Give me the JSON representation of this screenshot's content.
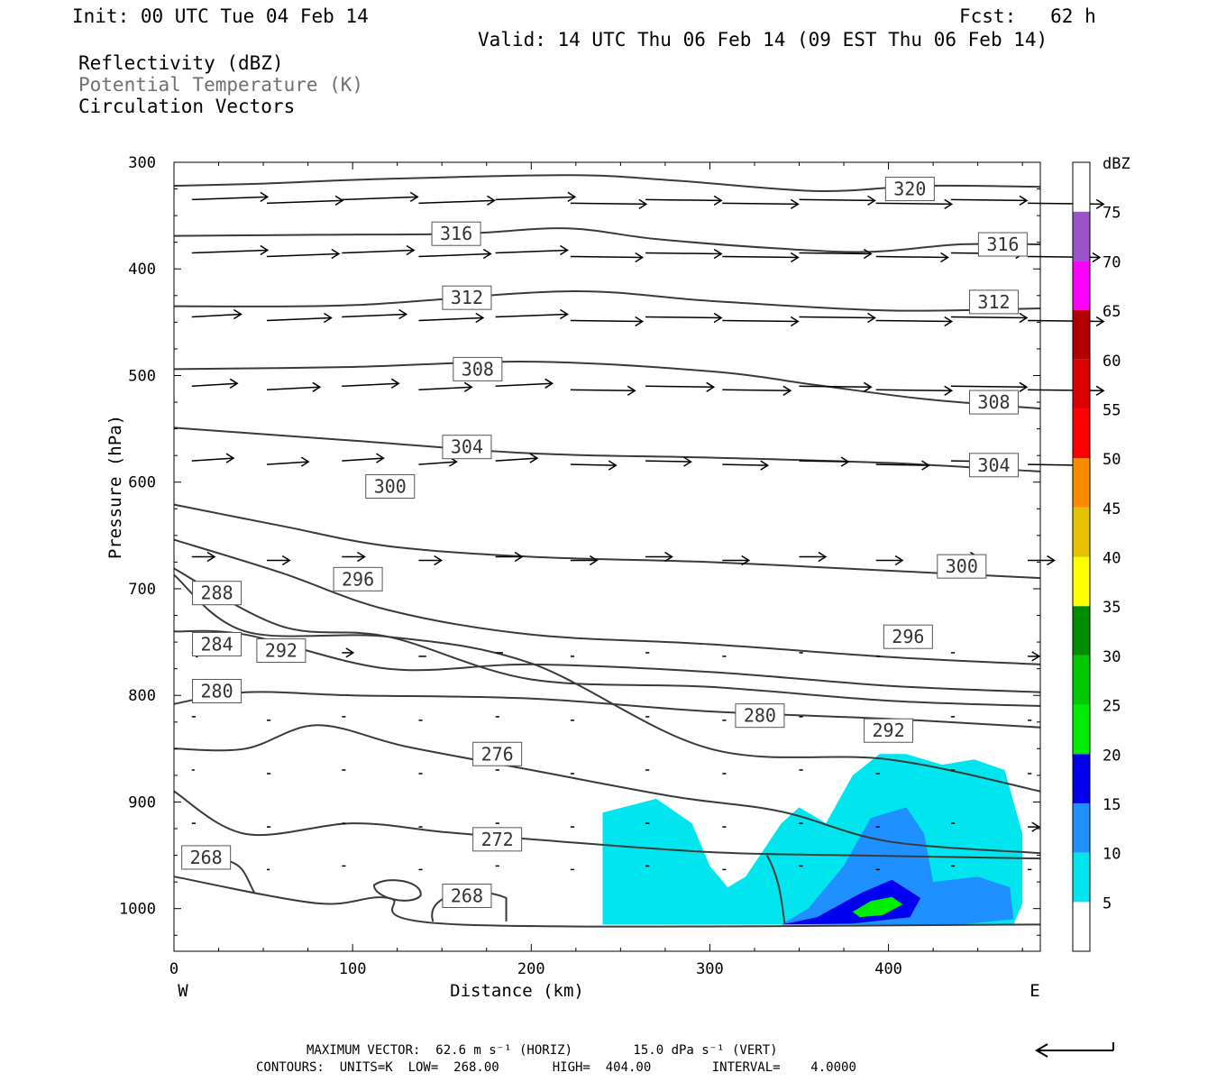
{
  "header": {
    "init": "Init: 00 UTC Tue 04 Feb 14",
    "fcst": "Fcst:   62 h",
    "valid": "Valid: 14 UTC Thu 06 Feb 14 (09 EST Thu 06 Feb 14)",
    "fields": [
      "Reflectivity (dBZ)",
      "Potential Temperature (K)",
      "Circulation Vectors"
    ]
  },
  "footer": {
    "max_vector": "MAXIMUM VECTOR:  62.6 m s⁻¹ (HORIZ)        15.0 dPa s⁻¹ (VERT)",
    "contours": "CONTOURS:  UNITS=K  LOW=  268.00       HIGH=  404.00        INTERVAL=    4.0000"
  },
  "colors": {
    "contour": "#3a3a3a",
    "refl_5": "#00e5ee",
    "refl_10": "#1e90ff",
    "refl_15": "#0000ee",
    "refl_20": "#00ee00"
  },
  "chart_data": {
    "type": "cross-section (filled contour + line contour + vectors)",
    "xlabel": "Distance (km)",
    "ylabel": "Pressure (hPa)",
    "xlim": [
      0,
      485
    ],
    "ylim": [
      1040,
      300
    ],
    "x_ticks": [
      "0",
      "100",
      "200",
      "300",
      "400"
    ],
    "y_ticks": [
      "300",
      "400",
      "500",
      "600",
      "700",
      "800",
      "900",
      "1000"
    ],
    "side_labels": {
      "left": "W",
      "right": "E"
    },
    "colorbar": {
      "unit": "dBZ",
      "levels": [
        "5",
        "10",
        "15",
        "20",
        "25",
        "30",
        "35",
        "40",
        "45",
        "50",
        "55",
        "60",
        "65",
        "70",
        "75"
      ],
      "colors": [
        "#ffffff",
        "#00e5ee",
        "#1e90ff",
        "#0000ee",
        "#00ee00",
        "#00c800",
        "#008c00",
        "#ffff00",
        "#e6c300",
        "#ff8c00",
        "#ff0000",
        "#dc0000",
        "#b40000",
        "#ff00ff",
        "#9955cc",
        "#ffffff"
      ]
    },
    "theta_contours": [
      {
        "label": "320",
        "points": [
          [
            0,
            322
          ],
          [
            50,
            320
          ],
          [
            110,
            316
          ],
          [
            220,
            312
          ],
          [
            280,
            317
          ],
          [
            360,
            327
          ],
          [
            420,
            322
          ],
          [
            485,
            323
          ]
        ],
        "labels_at": [
          [
            412,
            325
          ]
        ]
      },
      {
        "label": "316",
        "points": [
          [
            0,
            369
          ],
          [
            80,
            368
          ],
          [
            160,
            367
          ],
          [
            220,
            362
          ],
          [
            270,
            372
          ],
          [
            340,
            381
          ],
          [
            390,
            384
          ],
          [
            440,
            377
          ],
          [
            485,
            377
          ]
        ],
        "labels_at": [
          [
            158,
            367
          ],
          [
            464,
            377
          ]
        ]
      },
      {
        "label": "312",
        "points": [
          [
            0,
            435
          ],
          [
            100,
            434
          ],
          [
            220,
            421
          ],
          [
            300,
            430
          ],
          [
            400,
            439
          ],
          [
            485,
            437
          ]
        ],
        "labels_at": [
          [
            164,
            427
          ],
          [
            459,
            431
          ]
        ]
      },
      {
        "label": "308",
        "points": [
          [
            0,
            494
          ],
          [
            100,
            492
          ],
          [
            200,
            487
          ],
          [
            300,
            496
          ],
          [
            360,
            509
          ],
          [
            420,
            522
          ],
          [
            485,
            531
          ]
        ],
        "labels_at": [
          [
            170,
            494
          ],
          [
            459,
            525
          ]
        ]
      },
      {
        "label": "304",
        "points": [
          [
            0,
            549
          ],
          [
            100,
            561
          ],
          [
            200,
            573
          ],
          [
            300,
            577
          ],
          [
            400,
            582
          ],
          [
            485,
            590
          ]
        ],
        "labels_at": [
          [
            164,
            567
          ],
          [
            459,
            584
          ]
        ]
      },
      {
        "label": "300",
        "points": [
          [
            0,
            621
          ],
          [
            60,
            641
          ],
          [
            120,
            660
          ],
          [
            200,
            670
          ],
          [
            300,
            675
          ],
          [
            400,
            683
          ],
          [
            485,
            690
          ]
        ],
        "labels_at": [
          [
            121,
            604
          ],
          [
            441,
            679
          ]
        ]
      },
      {
        "label": "296",
        "points": [
          [
            0,
            654
          ],
          [
            60,
            685
          ],
          [
            120,
            720
          ],
          [
            200,
            743
          ],
          [
            300,
            752
          ],
          [
            400,
            764
          ],
          [
            485,
            771
          ]
        ],
        "labels_at": [
          [
            103,
            691
          ],
          [
            411,
            745
          ]
        ]
      },
      {
        "label": "292",
        "points": [
          [
            0,
            681
          ],
          [
            60,
            735
          ],
          [
            120,
            745
          ],
          [
            200,
            785
          ],
          [
            300,
            792
          ],
          [
            400,
            805
          ],
          [
            485,
            810
          ]
        ],
        "labels_at": [
          [
            60,
            758
          ],
          [
            400,
            833
          ]
        ]
      },
      {
        "label": "288",
        "points": [
          [
            0,
            687
          ],
          [
            40,
            740
          ],
          [
            120,
            745
          ],
          [
            200,
            770
          ],
          [
            300,
            850
          ],
          [
            400,
            860
          ],
          [
            485,
            890
          ]
        ],
        "labels_at": [
          [
            24,
            704
          ]
        ]
      },
      {
        "label": "284",
        "points": [
          [
            0,
            740
          ],
          [
            40,
            743
          ],
          [
            120,
            775
          ],
          [
            200,
            771
          ],
          [
            300,
            778
          ],
          [
            400,
            791
          ],
          [
            485,
            797
          ]
        ],
        "labels_at": [
          [
            24,
            752
          ]
        ]
      },
      {
        "label": "280",
        "points": [
          [
            0,
            808
          ],
          [
            40,
            797
          ],
          [
            100,
            800
          ],
          [
            200,
            803
          ],
          [
            300,
            815
          ],
          [
            400,
            822
          ],
          [
            485,
            830
          ]
        ],
        "labels_at": [
          [
            24,
            796
          ],
          [
            328,
            819
          ]
        ]
      },
      {
        "label": "276",
        "points": [
          [
            0,
            850
          ],
          [
            40,
            850
          ],
          [
            80,
            828
          ],
          [
            130,
            848
          ],
          [
            200,
            870
          ],
          [
            280,
            895
          ],
          [
            340,
            909
          ],
          [
            400,
            937
          ],
          [
            485,
            948
          ]
        ],
        "labels_at": [
          [
            181,
            855
          ]
        ]
      },
      {
        "label": "272",
        "points": [
          [
            0,
            890
          ],
          [
            40,
            930
          ],
          [
            100,
            920
          ],
          [
            150,
            928
          ],
          [
            200,
            935
          ],
          [
            300,
            947
          ],
          [
            380,
            950
          ],
          [
            485,
            953
          ]
        ],
        "labels_at": [
          [
            181,
            935
          ]
        ]
      },
      {
        "label": "268",
        "points": [
          [
            0,
            970
          ],
          [
            80,
            995
          ],
          [
            120,
            990
          ],
          [
            160,
            1015
          ],
          [
            485,
            1015
          ]
        ],
        "labels_at": [
          [
            18,
            952
          ],
          [
            164,
            988
          ]
        ]
      }
    ],
    "reflectivity_regions": [
      {
        "dbz": 5,
        "x_range": [
          240,
          475
        ],
        "p_range": [
          860,
          1015
        ]
      },
      {
        "dbz": 10,
        "x_range": [
          340,
          475
        ],
        "p_range": [
          915,
          1015
        ]
      },
      {
        "dbz": 15,
        "x_range": [
          340,
          420
        ],
        "p_range": [
          975,
          1015
        ]
      },
      {
        "dbz": 20,
        "x_range": [
          380,
          410
        ],
        "p_range": [
          988,
          1008
        ]
      }
    ],
    "vectors": {
      "x": [
        10,
        52,
        94,
        137,
        180,
        222,
        264,
        307,
        350,
        393,
        435,
        478
      ],
      "p": [
        335,
        385,
        445,
        510,
        580,
        670,
        760,
        820,
        870,
        920,
        960
      ],
      "u": [
        [
          40,
          40,
          40,
          40,
          42,
          40,
          40,
          40,
          40,
          40,
          40,
          40
        ],
        [
          40,
          38,
          38,
          38,
          38,
          38,
          40,
          40,
          38,
          38,
          38,
          38
        ],
        [
          26,
          34,
          34,
          34,
          38,
          38,
          40,
          40,
          40,
          40,
          40,
          40
        ],
        [
          24,
          28,
          30,
          28,
          30,
          34,
          36,
          36,
          38,
          40,
          40,
          40
        ],
        [
          22,
          22,
          22,
          20,
          22,
          24,
          24,
          24,
          26,
          28,
          30,
          30
        ],
        [
          12,
          12,
          12,
          12,
          14,
          14,
          14,
          14,
          14,
          14,
          14,
          14
        ],
        [
          6,
          6,
          6,
          4,
          4,
          2,
          2,
          2,
          2,
          2,
          2,
          6
        ],
        [
          2,
          2,
          2,
          2,
          2,
          2,
          2,
          2,
          2,
          2,
          2,
          2
        ],
        [
          0,
          2,
          2,
          2,
          2,
          2,
          2,
          2,
          2,
          2,
          2,
          2
        ],
        [
          2,
          2,
          2,
          2,
          2,
          2,
          2,
          2,
          2,
          2,
          2,
          6
        ],
        [
          0,
          0,
          2,
          2,
          2,
          2,
          2,
          2,
          2,
          2,
          2,
          2
        ]
      ],
      "reference_vector": "62.6 m s-1 horizontal, 15.0 dPa s-1 vertical"
    }
  }
}
